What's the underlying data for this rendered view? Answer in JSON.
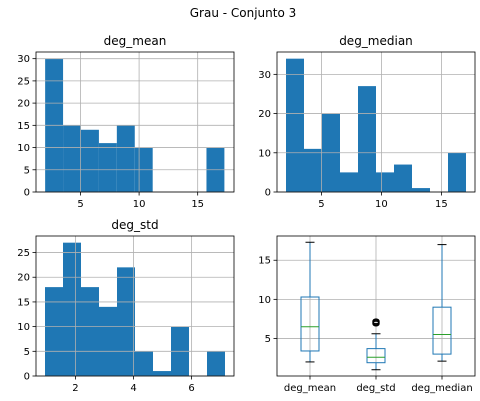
{
  "figure": {
    "suptitle": "Grau - Conjunto 3"
  },
  "chart_data": [
    {
      "type": "bar",
      "title": "deg_mean",
      "bin_edges": [
        1.98,
        3.51,
        5.04,
        6.57,
        8.1,
        9.63,
        11.16,
        12.69,
        14.22,
        15.75,
        17.28
      ],
      "values": [
        30,
        15,
        14,
        11,
        15,
        10,
        0,
        0,
        0,
        10
      ],
      "xticks": [
        5,
        10,
        15
      ],
      "yticks": [
        0,
        5,
        10,
        15,
        20,
        25,
        30
      ],
      "xlim": [
        1.2,
        18.1
      ],
      "ylim": [
        0,
        31.5
      ],
      "color": "#1f77b4",
      "grid": true
    },
    {
      "type": "bar",
      "title": "deg_median",
      "bin_edges": [
        2.05,
        3.55,
        5.05,
        6.55,
        8.05,
        9.55,
        11.05,
        12.55,
        14.05,
        15.55,
        17.05
      ],
      "values": [
        34,
        11,
        20,
        5,
        27,
        5,
        7,
        1,
        0,
        10
      ],
      "xticks": [
        5,
        10,
        15
      ],
      "yticks": [
        0,
        10,
        20,
        30
      ],
      "xlim": [
        1.3,
        17.8
      ],
      "ylim": [
        0,
        35.7
      ],
      "color": "#1f77b4",
      "grid": true
    },
    {
      "type": "bar",
      "title": "deg_std",
      "bin_edges": [
        0.95,
        1.57,
        2.19,
        2.81,
        3.43,
        4.05,
        4.67,
        5.29,
        5.91,
        6.53,
        7.15
      ],
      "values": [
        18,
        27,
        18,
        14,
        22,
        5,
        1,
        10,
        0,
        5
      ],
      "xticks": [
        2,
        4,
        6
      ],
      "yticks": [
        0,
        5,
        10,
        15,
        20,
        25
      ],
      "xlim": [
        0.64,
        7.46
      ],
      "ylim": [
        0,
        28.35
      ],
      "color": "#1f77b4",
      "grid": true
    },
    {
      "type": "box",
      "categories": [
        "deg_mean",
        "deg_std",
        "deg_median"
      ],
      "boxes": [
        {
          "whislo": 2.0,
          "q1": 3.4,
          "med": 6.5,
          "q3": 10.3,
          "whishi": 17.3,
          "fliers": []
        },
        {
          "whislo": 1.0,
          "q1": 1.9,
          "med": 2.6,
          "q3": 3.7,
          "whishi": 5.6,
          "fliers": [
            6.9,
            7.0,
            7.1,
            7.2
          ]
        },
        {
          "whislo": 2.1,
          "q1": 3.0,
          "med": 5.5,
          "q3": 9.0,
          "whishi": 17.0,
          "fliers": []
        }
      ],
      "yticks": [
        5,
        10,
        15
      ],
      "ylim": [
        0.2,
        18.1
      ],
      "box_color": "#1f77b4",
      "median_color": "#2ca02c",
      "grid": true
    }
  ]
}
